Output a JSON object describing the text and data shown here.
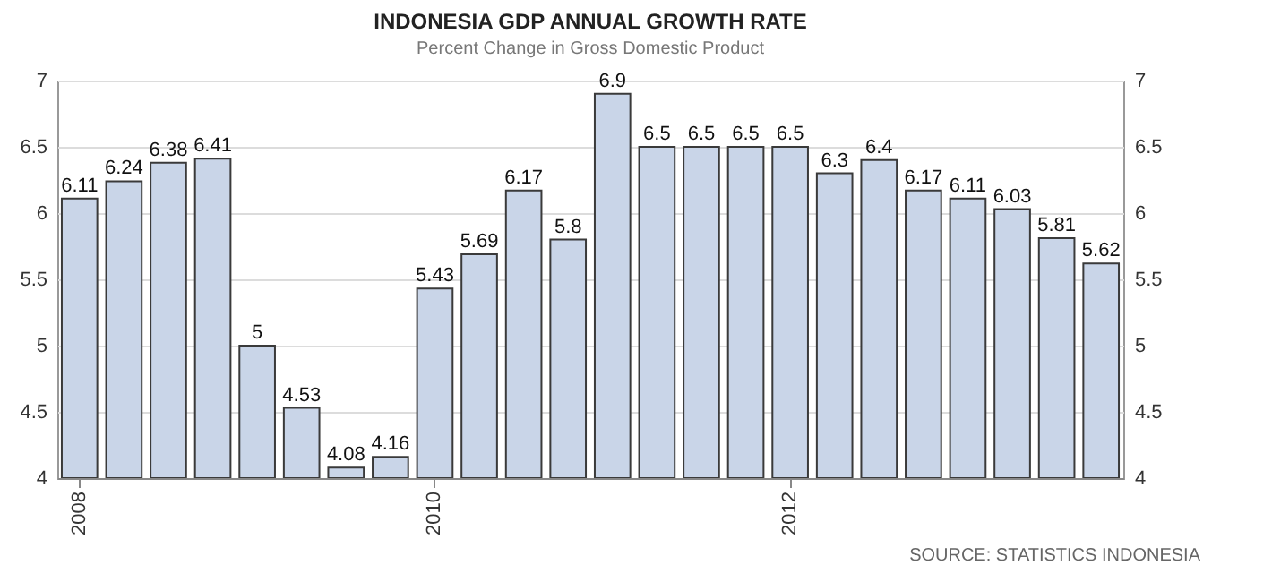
{
  "chart_data": {
    "type": "bar",
    "title": "INDONESIA GDP ANNUAL GROWTH RATE",
    "subtitle": "Percent Change in Gross Domestic Product",
    "categories": [
      "2008",
      null,
      null,
      null,
      null,
      null,
      null,
      null,
      "2010",
      null,
      null,
      null,
      null,
      null,
      null,
      null,
      "2012",
      null,
      null,
      null,
      null,
      null,
      null,
      null
    ],
    "series": [
      {
        "color": "#c9d5e8",
        "values": [
          6.11,
          6.24,
          6.38,
          6.41,
          5,
          4.53,
          4.08,
          4.16,
          5.43,
          5.69,
          6.17,
          5.8,
          6.9,
          6.5,
          6.5,
          6.5,
          6.5,
          6.3,
          6.4,
          6.17,
          6.11,
          6.03,
          5.81,
          5.62
        ]
      }
    ],
    "ylim": [
      4,
      7
    ],
    "yticks": [
      4,
      4.5,
      5,
      5.5,
      6,
      6.5,
      7
    ],
    "y2lim": [
      4,
      7
    ],
    "y2ticks": [
      4,
      4.5,
      5,
      5.5,
      6,
      6.5,
      7
    ],
    "grid": "y",
    "data_labels": true,
    "annotations": [
      "SOURCE: STATISTICS INDONESIA"
    ]
  }
}
